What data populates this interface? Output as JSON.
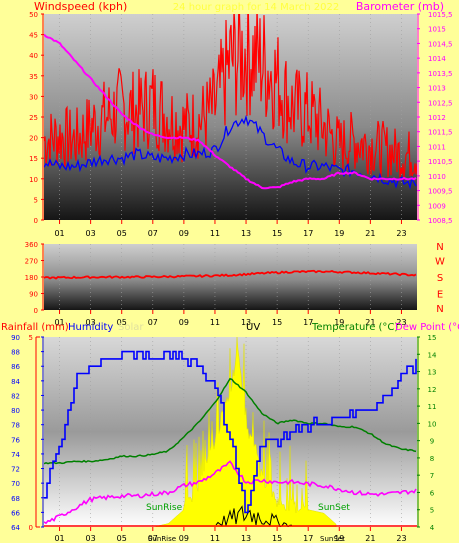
{
  "panel_top": {
    "left_title": "Windspeed (kph)",
    "center_title": "24 hour graph for 14 March 2022",
    "right_title": "Barometer (mb)",
    "left_ticks": [
      "0",
      "5",
      "10",
      "15",
      "20",
      "25",
      "30",
      "35",
      "40",
      "45",
      "50"
    ],
    "right_ticks": [
      "1008,5",
      "1009",
      "1009,5",
      "1010",
      "1010,5",
      "1011",
      "1011,5",
      "1012",
      "1012,5",
      "1013",
      "1013,5",
      "1014",
      "1014,5",
      "1015",
      "1015,5"
    ],
    "hour_labels": [
      "01",
      "03",
      "05",
      "07",
      "09",
      "11",
      "13",
      "15",
      "17",
      "19",
      "21",
      "23"
    ]
  },
  "panel_dir": {
    "left_ticks": [
      "0",
      "90",
      "180",
      "270",
      "360"
    ],
    "compass": [
      "N",
      "W",
      "S",
      "E",
      "N"
    ],
    "hour_labels": [
      "01",
      "03",
      "05",
      "07",
      "09",
      "11",
      "13",
      "15",
      "17",
      "19",
      "21",
      "23"
    ]
  },
  "panel_bottom": {
    "titles": {
      "rainfall": "Rainfall (mm)",
      "humidity": "Humidity",
      "solar": "Solar",
      "uv": "UV",
      "temperature": "Temperature (°C)",
      "dewpoint": "Dew Point (°C)"
    },
    "left_rain_ticks": [
      "0",
      "5"
    ],
    "humidity_ticks": [
      "64",
      "66",
      "68",
      "70",
      "72",
      "74",
      "76",
      "78",
      "80",
      "82",
      "84",
      "86",
      "88",
      "90"
    ],
    "temp_ticks": [
      "4",
      "5",
      "6",
      "7",
      "8",
      "9",
      "10",
      "11",
      "12",
      "13",
      "14",
      "15"
    ],
    "hour_labels": [
      "01",
      "03",
      "05",
      "07",
      "09",
      "11",
      "13",
      "15",
      "17",
      "19",
      "21",
      "23"
    ],
    "sunrise_label": "SunRise",
    "sunset_label": "SunSet",
    "bottom_markers": [
      "SunRise",
      "SunSet"
    ]
  },
  "colors": {
    "wind": "#ff0000",
    "gust": "#ff0000",
    "avgwind": "#0000ff",
    "barometer": "#ff00ff",
    "direction": "#ff0000",
    "humidity": "#0000ff",
    "temperature": "#008000",
    "dewpoint": "#ff00ff",
    "solar": "#ffff00",
    "uv": "#000000",
    "title_red": "#ff0000",
    "title_magenta": "#ff00ff"
  },
  "chart_data": [
    {
      "type": "line",
      "title": "24 hour graph for 14 March 2022",
      "xlabel": "",
      "x_unit": "hour",
      "ylabel": "Windspeed (kph)",
      "ylim": [
        0,
        50
      ],
      "y2label": "Barometer (mb)",
      "y2lim": [
        1008.5,
        1015.5
      ],
      "series": [
        {
          "name": "Windspeed (kph)",
          "axis": "left",
          "x": [
            0,
            1,
            2,
            3,
            4,
            5,
            6,
            7,
            8,
            9,
            10,
            11,
            12,
            13,
            14,
            15,
            16,
            17,
            18,
            19,
            20,
            21,
            22,
            23,
            24
          ],
          "values": [
            17,
            18,
            17,
            20,
            22,
            24,
            23,
            25,
            22,
            20,
            21,
            24,
            34,
            36,
            34,
            30,
            24,
            23,
            20,
            16,
            17,
            16,
            15,
            14,
            14
          ]
        },
        {
          "name": "Average windspeed",
          "axis": "left",
          "x": [
            0,
            1,
            2,
            3,
            4,
            5,
            6,
            7,
            8,
            9,
            10,
            11,
            12,
            13,
            14,
            15,
            16,
            17,
            18,
            19,
            20,
            21,
            22,
            23,
            24
          ],
          "values": [
            14,
            13,
            13,
            14,
            15,
            15,
            16,
            15,
            15,
            16,
            16,
            17,
            23,
            25,
            21,
            17,
            14,
            13,
            13,
            12,
            12,
            11,
            10,
            9,
            9
          ]
        },
        {
          "name": "Barometer (mb)",
          "axis": "right",
          "x": [
            0,
            1,
            2,
            3,
            4,
            5,
            6,
            7,
            8,
            9,
            10,
            11,
            12,
            13,
            14,
            15,
            16,
            17,
            18,
            19,
            20,
            21,
            22,
            23,
            24
          ],
          "values": [
            1014.8,
            1014.5,
            1013.9,
            1013.3,
            1012.7,
            1012.1,
            1011.7,
            1011.4,
            1011.3,
            1011.3,
            1011.2,
            1010.7,
            1010.3,
            1009.9,
            1009.6,
            1009.6,
            1009.8,
            1009.9,
            1009.9,
            1010.1,
            1010.1,
            1009.9,
            1009.9,
            1009.9,
            1009.9
          ]
        }
      ]
    },
    {
      "type": "line",
      "title": "",
      "xlabel": "",
      "ylabel": "",
      "ylim": [
        0,
        360
      ],
      "series": [
        {
          "name": "Wind direction",
          "x": [
            0,
            2,
            4,
            6,
            8,
            10,
            12,
            14,
            16,
            18,
            20,
            22,
            24
          ],
          "values": [
            175,
            178,
            180,
            180,
            182,
            185,
            190,
            200,
            208,
            210,
            205,
            198,
            190
          ]
        }
      ]
    },
    {
      "type": "line",
      "title": "",
      "xlabel": "",
      "ylabel": "Humidity",
      "ylim": [
        64,
        90
      ],
      "y2label": "Temperature (°C)",
      "y2lim": [
        4,
        15
      ],
      "series": [
        {
          "name": "Humidity",
          "axis": "left",
          "x": [
            0,
            1,
            2,
            3,
            4,
            5,
            6,
            7,
            8,
            9,
            10,
            11,
            12,
            13,
            14,
            15,
            16,
            17,
            18,
            19,
            20,
            21,
            22,
            23,
            24
          ],
          "values": [
            69,
            75,
            84,
            86,
            87,
            88,
            88,
            87,
            88,
            87,
            86,
            83,
            76,
            66,
            76,
            76,
            77,
            78,
            78,
            79,
            80,
            80,
            82,
            85,
            86
          ]
        },
        {
          "name": "Temperature (°C)",
          "axis": "right",
          "x": [
            0,
            1,
            2,
            3,
            4,
            5,
            6,
            7,
            8,
            9,
            10,
            11,
            12,
            13,
            14,
            15,
            16,
            17,
            18,
            19,
            20,
            21,
            22,
            23,
            24
          ],
          "values": [
            7.7,
            7.7,
            7.8,
            7.8,
            7.9,
            8.1,
            8.1,
            8.2,
            8.4,
            9.2,
            10.1,
            11.2,
            12.6,
            11.8,
            10.6,
            10.0,
            10.2,
            10.0,
            10.0,
            9.8,
            9.8,
            9.4,
            8.8,
            8.5,
            8.4
          ]
        },
        {
          "name": "Dew Point (°C)",
          "axis": "right",
          "x": [
            0,
            1,
            2,
            3,
            4,
            5,
            6,
            7,
            8,
            9,
            10,
            11,
            12,
            13,
            14,
            15,
            16,
            17,
            18,
            19,
            20,
            21,
            22,
            23,
            24
          ],
          "values": [
            4.2,
            4.6,
            5.1,
            5.6,
            5.7,
            5.8,
            5.8,
            5.9,
            6.0,
            6.4,
            6.6,
            7.1,
            7.7,
            6.6,
            6.7,
            6.6,
            6.6,
            6.5,
            6.4,
            6.2,
            6.0,
            5.9,
            5.9,
            6.0,
            6.1
          ]
        },
        {
          "name": "Solar",
          "axis": "right",
          "x": [
            0,
            7,
            8,
            9,
            10,
            11,
            12,
            12.5,
            13,
            14,
            15,
            16,
            17,
            18,
            19,
            20,
            21,
            22,
            23,
            24
          ],
          "values": [
            4,
            4,
            4.2,
            5.0,
            6.5,
            9.0,
            12.0,
            14.5,
            10.0,
            7.0,
            5.5,
            5.2,
            5.0,
            4.8,
            4.0,
            4,
            4,
            4,
            4,
            4
          ]
        }
      ]
    }
  ]
}
